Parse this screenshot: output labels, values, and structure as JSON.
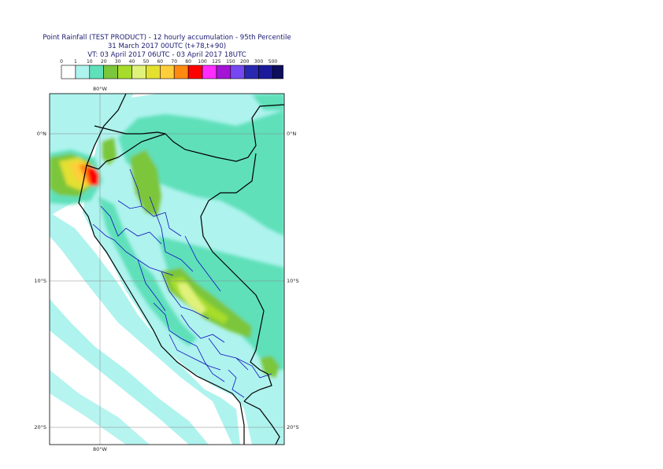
{
  "title": {
    "line1": "Point Rainfall (TEST PRODUCT) - 12 hourly accumulation - 95th Percentile",
    "line2": "31 March 2017 00UTC (t+78,t+90)",
    "line3": "VT: 03 April 2017 06UTC - 03 April 2017 18UTC"
  },
  "legend": {
    "thresholds": [
      "0",
      "1",
      "10",
      "20",
      "30",
      "40",
      "50",
      "60",
      "70",
      "80",
      "100",
      "125",
      "150",
      "200",
      "300",
      "500"
    ],
    "colors": [
      "#ffffff",
      "#aef3ee",
      "#5fe0b9",
      "#7bc63b",
      "#a7dc2a",
      "#e0f27a",
      "#e3e030",
      "#ffce3a",
      "#ff8a12",
      "#ff0000",
      "#ff2bff",
      "#a314d6",
      "#7648f0",
      "#2828b0",
      "#1a1a9a",
      "#0d0d5a"
    ]
  },
  "axes": {
    "lon_labels": [
      "80°W"
    ],
    "lat_labels": [
      "0°N",
      "10°S",
      "20°S"
    ]
  },
  "map_data": {
    "extent": {
      "lon_min": -81.2,
      "lon_max": -68.6,
      "lat_min": -21.0,
      "lat_max": 2.7
    },
    "graticule": {
      "lon": [
        -80
      ],
      "lat": [
        0,
        -10,
        -20
      ]
    }
  }
}
